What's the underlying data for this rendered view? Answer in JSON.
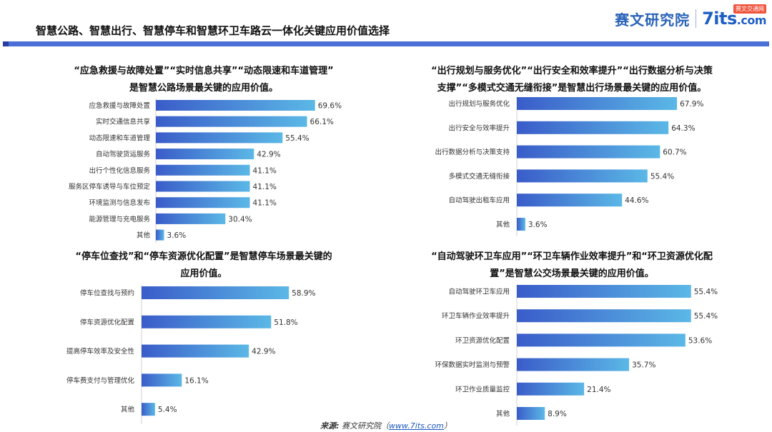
{
  "header": {
    "title": "智慧公路、智慧出行、智慧停车和智慧环卫车路云一体化关键应用价值选择",
    "logo_cn": "赛文研究院",
    "logo_en": "7its",
    "logo_dotcom": ".com",
    "logo_badge": "赛文交通网"
  },
  "colors": {
    "bar_dark": "#3a5cc9",
    "bar_light": "#5bb8e6",
    "header_bar": "#4a6fd6"
  },
  "source": {
    "label": "来源:",
    "text": "赛文研究院（",
    "link": "www.7its.com",
    "close": "）"
  },
  "chart_data": [
    {
      "type": "bar",
      "orientation": "horizontal",
      "title": "“应急救援与故障处置”“实时信息共享”“动态限速和车道管理”是智慧公路场景最关键的应用价值。",
      "title_lines": [
        "“应急救援与故障处置”“实时信息共享”“动态限速和车道管理”",
        "是智慧公路场景最关键的应用价值。"
      ],
      "categories": [
        "应急救援与故障处置",
        "实时交通信息共享",
        "动态限速和车道管理",
        "自动驾驶货运服务",
        "出行个性化信息服务",
        "服务区停车诱导与车位预定",
        "环境监测与信息发布",
        "能源管理与充电服务",
        "其他"
      ],
      "values": [
        69.6,
        66.1,
        55.4,
        42.9,
        41.1,
        41.1,
        41.1,
        30.4,
        3.6
      ],
      "value_labels": [
        "69.6%",
        "66.1%",
        "55.4%",
        "42.9%",
        "41.1%",
        "41.1%",
        "41.1%",
        "30.4%",
        "3.6%"
      ],
      "unit": "%",
      "xlim": [
        0,
        100
      ]
    },
    {
      "type": "bar",
      "orientation": "horizontal",
      "title": "“出行规划与服务优化”“出行安全和效率提升”“出行数据分析与决策支撑”“多模式交通无缝衔接”是智慧出行场景最关键的应用价值。",
      "title_lines": [
        "“出行规划与服务优化”“出行安全和效率提升”“出行数据分析与决策",
        "支撑”“多模式交通无缝衔接”是智慧出行场景最关键的应用价值。"
      ],
      "categories": [
        "出行规划与服务优化",
        "出行安全与效率提升",
        "出行数据分析与决策支持",
        "多模式交通无缝衔接",
        "自动驾驶出租车应用",
        "其他"
      ],
      "values": [
        67.9,
        64.3,
        60.7,
        55.4,
        44.6,
        3.6
      ],
      "value_labels": [
        "67.9%",
        "64.3%",
        "60.7%",
        "55.4%",
        "44.6%",
        "3.6%"
      ],
      "unit": "%",
      "xlim": [
        0,
        100
      ]
    },
    {
      "type": "bar",
      "orientation": "horizontal",
      "title": "“停车位查找”和“停车资源优化配置”是智慧停车场景最关键的应用价值。",
      "title_lines": [
        "“停车位查找”和“停车资源优化配置”是智慧停车场景最关键的",
        "应用价值。"
      ],
      "categories": [
        "停车位查找与预约",
        "停车资源优化配置",
        "提高停车效率及安全性",
        "停车费支付与管理优化",
        "其他"
      ],
      "values": [
        58.9,
        51.8,
        42.9,
        16.1,
        5.4
      ],
      "value_labels": [
        "58.9%",
        "51.8%",
        "42.9%",
        "16.1%",
        "5.4%"
      ],
      "unit": "%",
      "xlim": [
        0,
        100
      ]
    },
    {
      "type": "bar",
      "orientation": "horizontal",
      "title": "“自动驾驶环卫车应用”“环卫车辆作业效率提升”和“环卫资源优化配置”是智慧公交场景最关键的应用价值。",
      "title_lines": [
        "“自动驾驶环卫车应用”“环卫车辆作业效率提升”和“环卫资源优化配",
        "置”是智慧公交场景最关键的应用价值。"
      ],
      "categories": [
        "自动驾驶环卫车应用",
        "环卫车辆作业效率提升",
        "环卫资源优化配置",
        "环保数据实时监测与预警",
        "环卫作业质量监控",
        "其他"
      ],
      "values": [
        55.4,
        55.4,
        53.6,
        35.7,
        21.4,
        8.9
      ],
      "value_labels": [
        "55.4%",
        "55.4%",
        "53.6%",
        "35.7%",
        "21.4%",
        "8.9%"
      ],
      "unit": "%",
      "xlim": [
        0,
        100
      ]
    }
  ]
}
